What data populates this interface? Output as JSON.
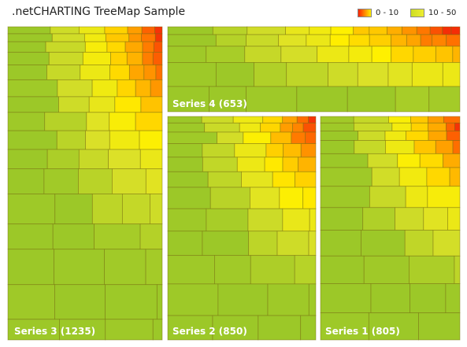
{
  "title": ".netCHARTING TreeMap Sample",
  "legend": [
    {
      "label": "0 - 10",
      "from": "#ff2200",
      "to": "#ffee00"
    },
    {
      "label": "10 - 50",
      "from": "#ccdd22",
      "to": "#eeee33"
    }
  ],
  "chart_data": {
    "type": "treemap",
    "title": ".netCHARTING TreeMap Sample",
    "series": [
      {
        "name": "Series 3",
        "label": "Series 3 (1235)",
        "total": 1235
      },
      {
        "name": "Series 4",
        "label": "Series 4 (653)",
        "total": 653
      },
      {
        "name": "Series 2",
        "label": "Series 2 (850)",
        "total": 850
      },
      {
        "name": "Series 1",
        "label": "Series 1 (805)",
        "total": 805
      }
    ]
  }
}
